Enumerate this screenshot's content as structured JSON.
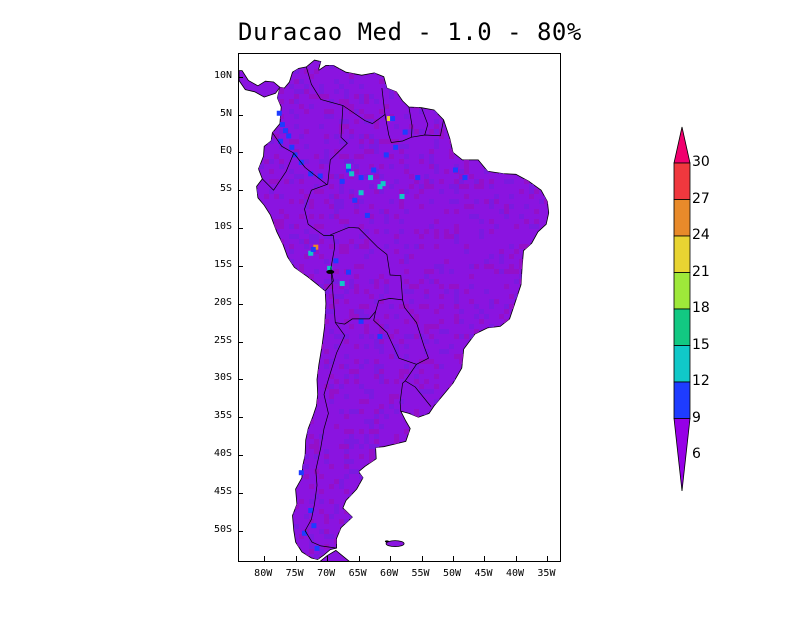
{
  "title": "Duracao Med - 1.0 - 80%",
  "map": {
    "region": "South America",
    "lon_range": [
      -84,
      -33
    ],
    "lat_range": [
      -54,
      13
    ],
    "lat_ticks": [
      {
        "value": 10,
        "label": "10N"
      },
      {
        "value": 5,
        "label": "5N"
      },
      {
        "value": 0,
        "label": "EQ"
      },
      {
        "value": -5,
        "label": "5S"
      },
      {
        "value": -10,
        "label": "10S"
      },
      {
        "value": -15,
        "label": "15S"
      },
      {
        "value": -20,
        "label": "20S"
      },
      {
        "value": -25,
        "label": "25S"
      },
      {
        "value": -30,
        "label": "30S"
      },
      {
        "value": -35,
        "label": "35S"
      },
      {
        "value": -40,
        "label": "40S"
      },
      {
        "value": -45,
        "label": "45S"
      },
      {
        "value": -50,
        "label": "50S"
      }
    ],
    "lon_ticks": [
      {
        "value": -80,
        "label": "80W"
      },
      {
        "value": -75,
        "label": "75W"
      },
      {
        "value": -70,
        "label": "70W"
      },
      {
        "value": -65,
        "label": "65W"
      },
      {
        "value": -60,
        "label": "60W"
      },
      {
        "value": -55,
        "label": "55W"
      },
      {
        "value": -50,
        "label": "50W"
      },
      {
        "value": -45,
        "label": "45W"
      },
      {
        "value": -40,
        "label": "40W"
      },
      {
        "value": -35,
        "label": "35W"
      }
    ],
    "dominant_color": "#8a14e0"
  },
  "colorbar": {
    "labels": [
      "30",
      "27",
      "24",
      "21",
      "18",
      "15",
      "12",
      "9",
      "6"
    ],
    "colors": [
      "#f0005a",
      "#f0383e",
      "#e88a2a",
      "#e8d432",
      "#9ee83a",
      "#12c882",
      "#10c8c8",
      "#1e3cff",
      "#8c00e6"
    ],
    "top_arrow_color": "#f0006e",
    "bottom_arrow_color": "#9600e6"
  }
}
